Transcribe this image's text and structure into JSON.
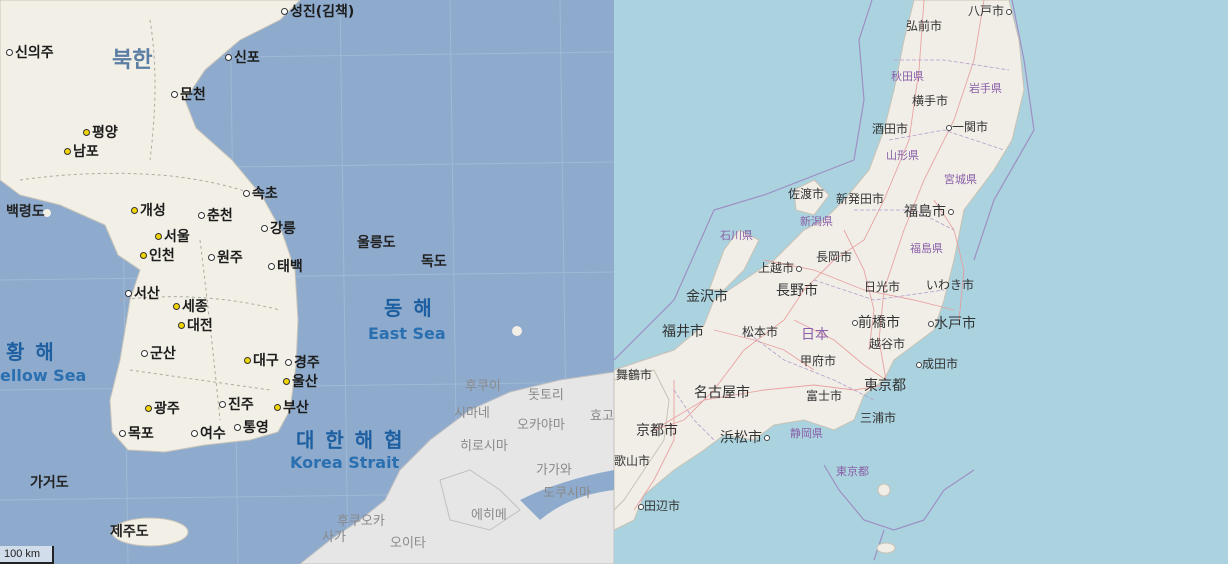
{
  "korea_map": {
    "country": "북한",
    "sea_east_ko": "동 해",
    "sea_east_en": "East Sea",
    "sea_west_ko": "황 해",
    "sea_west_en": "ellow Sea",
    "strait_ko": "대 한 해 협",
    "strait_en": "Korea Strait",
    "cities": [
      "성진(김책)",
      "신의주",
      "신포",
      "문천",
      "평양",
      "남포",
      "속초",
      "개성",
      "춘천",
      "강릉",
      "서울",
      "인천",
      "원주",
      "태백",
      "서산",
      "세종",
      "대전",
      "군산",
      "대구",
      "경주",
      "울산",
      "광주",
      "진주",
      "부산",
      "목포",
      "여수",
      "통영"
    ],
    "islands": [
      "백령도",
      "울릉도",
      "독도",
      "가거도",
      "제주도"
    ],
    "japan_labels": [
      "후쿠이",
      "돗토리",
      "시마네",
      "오카야마",
      "효고",
      "히로시마",
      "가가와",
      "도쿠시마",
      "후쿠오카",
      "에히메",
      "사가",
      "오이타"
    ],
    "scale": "100 km"
  },
  "japan_map": {
    "nation": "日本",
    "cities": [
      "八戸市",
      "弘前市",
      "横手市",
      "一関市",
      "酒田市",
      "福島市",
      "新発田市",
      "佐渡市",
      "長岡市",
      "上越市",
      "長野市",
      "日光市",
      "いわき市",
      "金沢市",
      "前橋市",
      "水戸市",
      "福井市",
      "松本市",
      "越谷市",
      "成田市",
      "甲府市",
      "東京都",
      "舞鶴市",
      "名古屋市",
      "富士市",
      "三浦市",
      "京都市",
      "浜松市",
      "歌山市",
      "田辺市"
    ],
    "prefectures": [
      "秋田県",
      "岩手県",
      "山形県",
      "宮城県",
      "新潟県",
      "石川県",
      "福島県",
      "静岡県",
      "東京都"
    ]
  }
}
